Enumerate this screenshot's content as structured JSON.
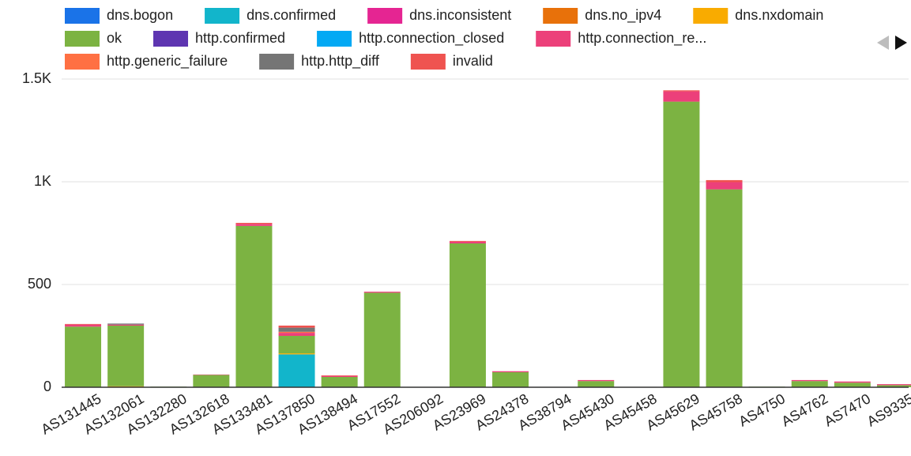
{
  "chart_data": {
    "type": "stacked_bar",
    "categories": [
      "AS131445",
      "AS132061",
      "AS132280",
      "AS132618",
      "AS133481",
      "AS137850",
      "AS138494",
      "AS17552",
      "AS206092",
      "AS23969",
      "AS24378",
      "AS38794",
      "AS45430",
      "AS45458",
      "AS45629",
      "AS45758",
      "AS4750",
      "AS4762",
      "AS7470",
      "AS9335"
    ],
    "series": [
      {
        "name": "dns.bogon",
        "color": "#1a73e8",
        "values": [
          0,
          0,
          0,
          0,
          0,
          0,
          0,
          0,
          0,
          0,
          0,
          0,
          0,
          0,
          0,
          0,
          0,
          0,
          0,
          0
        ]
      },
      {
        "name": "dns.confirmed",
        "color": "#12b5cb",
        "values": [
          0,
          0,
          0,
          0,
          0,
          160,
          0,
          0,
          0,
          0,
          0,
          0,
          0,
          0,
          0,
          0,
          0,
          0,
          0,
          0
        ]
      },
      {
        "name": "dns.inconsistent",
        "color": "#e52592",
        "values": [
          0,
          0,
          0,
          0,
          0,
          0,
          0,
          0,
          0,
          0,
          0,
          0,
          0,
          0,
          0,
          0,
          0,
          0,
          0,
          0
        ]
      },
      {
        "name": "dns.no_ipv4",
        "color": "#e8710a",
        "values": [
          0,
          0,
          0,
          0,
          0,
          0,
          0,
          0,
          0,
          0,
          0,
          0,
          0,
          0,
          0,
          0,
          0,
          0,
          0,
          0
        ]
      },
      {
        "name": "dns.nxdomain",
        "color": "#f9ab00",
        "values": [
          0,
          5,
          0,
          0,
          0,
          5,
          0,
          0,
          0,
          0,
          0,
          0,
          0,
          0,
          0,
          0,
          0,
          0,
          0,
          0
        ]
      },
      {
        "name": "ok",
        "color": "#7cb342",
        "values": [
          295,
          295,
          3,
          60,
          785,
          85,
          50,
          460,
          2,
          700,
          73,
          2,
          30,
          2,
          1390,
          963,
          3,
          30,
          22,
          10
        ]
      },
      {
        "name": "http.confirmed",
        "color": "#5e35b1",
        "values": [
          0,
          0,
          0,
          0,
          0,
          0,
          0,
          0,
          0,
          0,
          0,
          0,
          0,
          0,
          0,
          0,
          0,
          0,
          0,
          0
        ]
      },
      {
        "name": "http.connection_closed",
        "color": "#03a9f4",
        "values": [
          0,
          0,
          0,
          0,
          0,
          0,
          0,
          0,
          0,
          0,
          0,
          0,
          0,
          0,
          0,
          0,
          0,
          0,
          0,
          0
        ]
      },
      {
        "name": "http.connection_re...",
        "color": "#ec407a",
        "values": [
          10,
          5,
          0,
          2,
          10,
          15,
          5,
          5,
          0,
          8,
          5,
          0,
          5,
          0,
          50,
          35,
          0,
          5,
          6,
          5
        ]
      },
      {
        "name": "http.generic_failure",
        "color": "#ff7043",
        "values": [
          0,
          0,
          0,
          0,
          0,
          5,
          0,
          0,
          0,
          0,
          0,
          0,
          0,
          0,
          0,
          0,
          0,
          0,
          0,
          0
        ]
      },
      {
        "name": "http.http_diff",
        "color": "#757575",
        "values": [
          0,
          5,
          0,
          0,
          0,
          20,
          0,
          0,
          0,
          0,
          0,
          0,
          0,
          0,
          0,
          0,
          0,
          0,
          0,
          0
        ]
      },
      {
        "name": "invalid",
        "color": "#ef5350",
        "values": [
          3,
          0,
          0,
          0,
          5,
          10,
          3,
          0,
          0,
          4,
          0,
          0,
          0,
          0,
          5,
          10,
          0,
          0,
          0,
          0
        ]
      }
    ],
    "ylim": [
      0,
      1500
    ],
    "yticks": [
      0,
      500,
      {
        "value": 1000,
        "label": "1K"
      },
      {
        "value": 1500,
        "label": "1.5K"
      }
    ],
    "grid": true
  }
}
